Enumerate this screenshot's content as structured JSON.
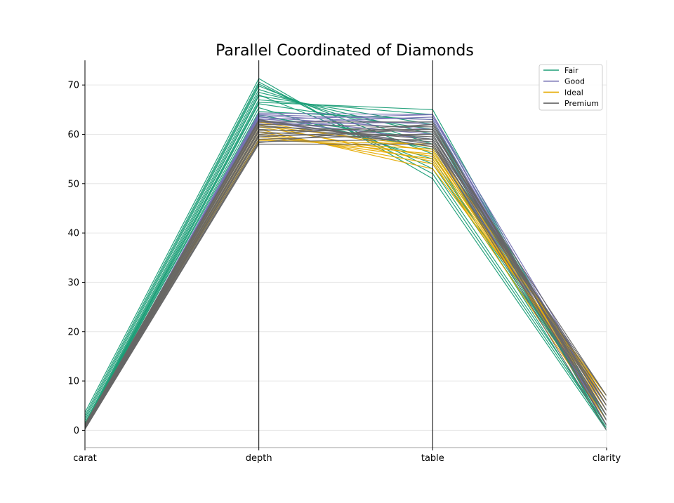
{
  "chart_data": {
    "type": "parallel-coordinates",
    "title": "Parallel Coordinated of Diamonds",
    "axes": [
      "carat",
      "depth",
      "table",
      "clarity"
    ],
    "ylim": [
      -3.5,
      75
    ],
    "yticks": [
      0,
      10,
      20,
      30,
      40,
      50,
      60,
      70
    ],
    "grid": true,
    "legend_position": "top-right",
    "series": [
      {
        "name": "Fair",
        "color": "#1b9e77",
        "lines": [
          [
            3.6,
            71.3,
            51,
            0
          ],
          [
            3.0,
            70.6,
            52,
            0.5
          ],
          [
            2.5,
            70.2,
            53,
            1
          ],
          [
            2.0,
            69.8,
            56,
            0
          ],
          [
            1.5,
            69.1,
            58,
            2
          ],
          [
            1.2,
            68.5,
            60,
            1
          ],
          [
            1.0,
            67.8,
            62,
            0
          ],
          [
            0.9,
            67.0,
            64,
            2
          ],
          [
            0.8,
            66.2,
            61,
            1
          ],
          [
            0.7,
            65.4,
            55,
            3
          ],
          [
            1.1,
            64.6,
            63,
            0
          ],
          [
            0.6,
            64.0,
            57,
            2
          ],
          [
            0.5,
            63.6,
            59,
            1
          ],
          [
            0.7,
            68.0,
            54,
            3
          ],
          [
            1.3,
            66.5,
            65,
            2
          ]
        ]
      },
      {
        "name": "Good",
        "color": "#7570b3",
        "lines": [
          [
            0.3,
            64.3,
            64,
            1
          ],
          [
            0.4,
            64.0,
            63,
            2
          ],
          [
            0.5,
            63.8,
            62,
            3
          ],
          [
            0.6,
            63.5,
            61,
            4
          ],
          [
            0.7,
            63.2,
            60,
            5
          ],
          [
            0.8,
            62.9,
            59,
            2
          ],
          [
            0.9,
            62.6,
            58,
            3
          ],
          [
            1.0,
            62.3,
            63.5,
            4
          ],
          [
            1.1,
            62.0,
            62.5,
            1
          ],
          [
            0.5,
            63.0,
            64,
            5
          ]
        ]
      },
      {
        "name": "Ideal",
        "color": "#e6ab02",
        "lines": [
          [
            0.3,
            61.0,
            53,
            7
          ],
          [
            0.4,
            60.5,
            54,
            6
          ],
          [
            0.5,
            60.0,
            55,
            5
          ],
          [
            0.6,
            59.5,
            56,
            4
          ],
          [
            0.7,
            59.0,
            57,
            3
          ],
          [
            0.8,
            58.8,
            58,
            6
          ],
          [
            0.9,
            61.5,
            55.5,
            7
          ],
          [
            1.0,
            62.0,
            54.5,
            2
          ],
          [
            1.2,
            62.5,
            56.5,
            5
          ],
          [
            0.35,
            61.8,
            57.5,
            6
          ]
        ]
      },
      {
        "name": "Premium",
        "color": "#666666",
        "lines": [
          [
            0.2,
            58.0,
            58,
            0
          ],
          [
            0.3,
            58.5,
            59,
            1
          ],
          [
            0.4,
            59.0,
            60,
            2
          ],
          [
            0.5,
            59.5,
            61,
            3
          ],
          [
            0.6,
            60.0,
            62,
            4
          ],
          [
            0.7,
            60.5,
            58.5,
            5
          ],
          [
            0.8,
            61.0,
            59.5,
            6
          ],
          [
            0.9,
            61.5,
            60.5,
            7
          ],
          [
            1.0,
            62.0,
            61.5,
            1
          ],
          [
            1.1,
            62.5,
            62.5,
            2
          ],
          [
            1.2,
            63.0,
            57.5,
            3
          ],
          [
            0.3,
            59.8,
            60,
            4
          ],
          [
            0.45,
            60.8,
            61,
            5
          ],
          [
            0.55,
            61.8,
            59,
            6
          ],
          [
            0.65,
            62.8,
            58,
            7
          ],
          [
            0.25,
            58.3,
            62,
            3
          ]
        ]
      }
    ]
  }
}
